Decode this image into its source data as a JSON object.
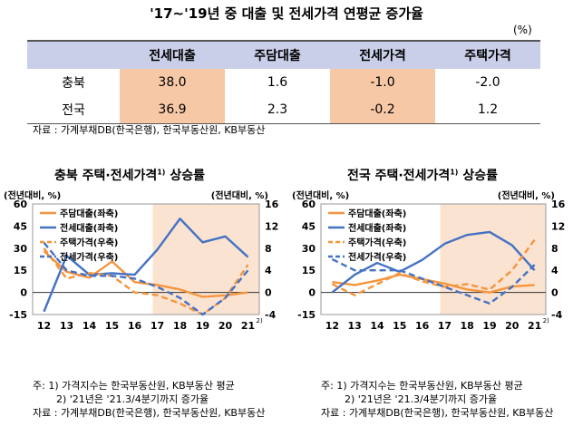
{
  "table": {
    "title": "'17~'19년 중 대출 및 전세가격 연평균 증가율",
    "unit": "(%)",
    "headers": [
      "",
      "전세대출",
      "주담대출",
      "전세가격",
      "주택가격"
    ],
    "rows": [
      {
        "label": "충북",
        "values": [
          "38.0",
          "1.6",
          "-1.0",
          "-2.0"
        ]
      },
      {
        "label": "전국",
        "values": [
          "36.9",
          "2.3",
          "-0.2",
          "1.2"
        ]
      }
    ],
    "highlight_color": "#f7c8a5",
    "header_color": "#c9cfe8",
    "source": "자료 : 가계부채DB(한국은행), 한국부동산원, KB부동산"
  },
  "chart_data": [
    {
      "type": "line",
      "title": "충북 주택·전세가격",
      "title_sup": "1)",
      "title_suffix": " 상승률",
      "ylabel_left": "(전년대비, %)",
      "ylabel_right": "(전년대비, %)",
      "x": [
        "12",
        "13",
        "14",
        "15",
        "16",
        "17",
        "18",
        "19",
        "20",
        "21"
      ],
      "x_last_sup": "2)",
      "ylim_left": [
        -15,
        60
      ],
      "yticks_left": [
        -15,
        0,
        15,
        30,
        45,
        60
      ],
      "ylim_right": [
        -4,
        16
      ],
      "yticks_right": [
        -4,
        0,
        4,
        8,
        12,
        16
      ],
      "shade_from": "17",
      "shade_color": "#fbe3d2",
      "series": [
        {
          "name": "주담대출(좌축)",
          "axis": "left",
          "style": "solid",
          "color": "#f5953c",
          "values": [
            28,
            14,
            10,
            21,
            7,
            5,
            2,
            -3,
            -2,
            0
          ]
        },
        {
          "name": "전세대출(좌축)",
          "axis": "left",
          "style": "solid",
          "color": "#4472c4",
          "values": [
            -13,
            25,
            12,
            13,
            12,
            29,
            50,
            34,
            38,
            24
          ]
        },
        {
          "name": "주택가격(우축)",
          "axis": "right",
          "style": "dashed",
          "color": "#f5953c",
          "values": [
            8,
            2.5,
            3.5,
            3,
            0,
            -0.5,
            -2,
            -4,
            -1,
            5
          ]
        },
        {
          "name": "전세가격(우축)",
          "axis": "right",
          "style": "dashed",
          "color": "#4472c4",
          "values": [
            9,
            4,
            3,
            3,
            2.5,
            1,
            -1,
            -4,
            -1,
            4
          ]
        }
      ],
      "notes": [
        "주: 1) 가격지수는 한국부동산원, KB부동산 평균",
        "2) '21년은 '21.3/4분기까지 증가율",
        "자료 : 가계부채DB(한국은행), 한국부동산원, KB부동산"
      ]
    },
    {
      "type": "line",
      "title": "전국 주택·전세가격",
      "title_sup": "1)",
      "title_suffix": " 상승률",
      "ylabel_left": "(전년대비, %)",
      "ylabel_right": "(전년대비, %)",
      "x": [
        "12",
        "13",
        "14",
        "15",
        "16",
        "17",
        "18",
        "19",
        "20",
        "21"
      ],
      "x_last_sup": "2)",
      "ylim_left": [
        -15,
        60
      ],
      "yticks_left": [
        -15,
        0,
        15,
        30,
        45,
        60
      ],
      "ylim_right": [
        -4,
        16
      ],
      "yticks_right": [
        -4,
        0,
        4,
        8,
        12,
        16
      ],
      "shade_from": "17",
      "shade_color": "#fbe3d2",
      "series": [
        {
          "name": "주담대출(좌축)",
          "axis": "left",
          "style": "solid",
          "color": "#f5953c",
          "values": [
            7,
            5,
            8,
            12,
            9,
            6,
            2,
            0,
            4,
            5
          ]
        },
        {
          "name": "전세대출(좌축)",
          "axis": "left",
          "style": "solid",
          "color": "#4472c4",
          "values": [
            0,
            12,
            20,
            14,
            22,
            33,
            39,
            41,
            32,
            15
          ]
        },
        {
          "name": "주택가격(우축)",
          "axis": "right",
          "style": "dashed",
          "color": "#f5953c",
          "values": [
            1.5,
            -0.5,
            1.5,
            3.5,
            2,
            1,
            1.5,
            0.5,
            4,
            9.5
          ]
        },
        {
          "name": "전세가격(우축)",
          "axis": "right",
          "style": "dashed",
          "color": "#4472c4",
          "values": [
            6,
            4,
            4,
            4,
            2.5,
            1,
            -0.5,
            -2,
            1,
            5
          ]
        }
      ],
      "notes": [
        "주: 1) 가격지수는 한국부동산원, KB부동산 평균",
        "2) '21년은 '21.3/4분기까지 증가율",
        "자료 : 가계부채DB(한국은행), 한국부동산원, KB부동산"
      ]
    }
  ]
}
